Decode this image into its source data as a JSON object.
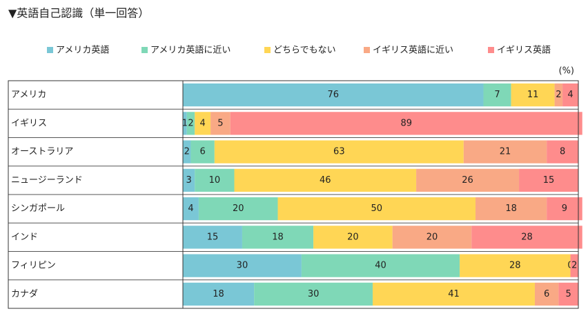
{
  "chart_data": {
    "type": "stacked-bar-horizontal",
    "title": "▼英語自己認識（単一回答）",
    "unit": "(%)",
    "categories": [
      "アメリカ",
      "イギリス",
      "オーストラリア",
      "ニュージーランド",
      "シンガポール",
      "インド",
      "フィリピン",
      "カナダ"
    ],
    "xlim": [
      0,
      100
    ],
    "series": [
      {
        "name": "アメリカ英語",
        "color": "#7ac7d6",
        "values": [
          76,
          1,
          2,
          3,
          4,
          15,
          30,
          18
        ]
      },
      {
        "name": "アメリカ英語に近い",
        "color": "#7fd8b7",
        "values": [
          7,
          2,
          6,
          10,
          20,
          18,
          40,
          30
        ]
      },
      {
        "name": "どちらでもない",
        "color": "#ffd655",
        "values": [
          11,
          4,
          63,
          46,
          50,
          20,
          28,
          41
        ]
      },
      {
        "name": "イギリス英語に近い",
        "color": "#f9a985",
        "values": [
          2,
          5,
          21,
          26,
          18,
          20,
          0,
          6
        ]
      },
      {
        "name": "イギリス英語",
        "color": "#fe8c8c",
        "values": [
          4,
          89,
          8,
          15,
          9,
          28,
          2,
          5
        ]
      }
    ]
  }
}
